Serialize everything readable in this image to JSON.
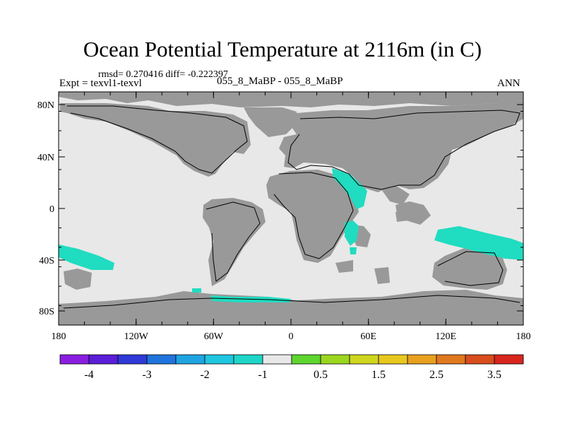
{
  "title": "Ocean Potential Temperature at 2116m (in C)",
  "stats": "rmsd= 0.270416 diff= -0.222397",
  "experiment": "Expt = texvl1-texvl",
  "comparison": "055_8_MaBP - 055_8_MaBP",
  "season": "ANN",
  "lat_ticks": [
    "80N",
    "40N",
    "0",
    "40S",
    "80S"
  ],
  "lon_ticks": [
    "180",
    "120W",
    "60W",
    "0",
    "60E",
    "120E",
    "180"
  ],
  "colorbar": {
    "colors": [
      "#8a1ee0",
      "#5a1ed8",
      "#2f3ad8",
      "#1f74dd",
      "#1fa4e2",
      "#1ec6e0",
      "#1ed6c8",
      "#e8e8e8",
      "#5ed62e",
      "#9bd61e",
      "#cfd61e",
      "#e8c81e",
      "#e8a01e",
      "#e0781e",
      "#d84e1e",
      "#d8261e"
    ],
    "labels": [
      "-4",
      "-3",
      "-2",
      "-1",
      "0.5",
      "1.5",
      "2.5",
      "3.5"
    ]
  },
  "legend_colors": {
    "ocean": "#e8e8e8",
    "land": "#999999",
    "negative_anomaly": "#20dcc0"
  }
}
